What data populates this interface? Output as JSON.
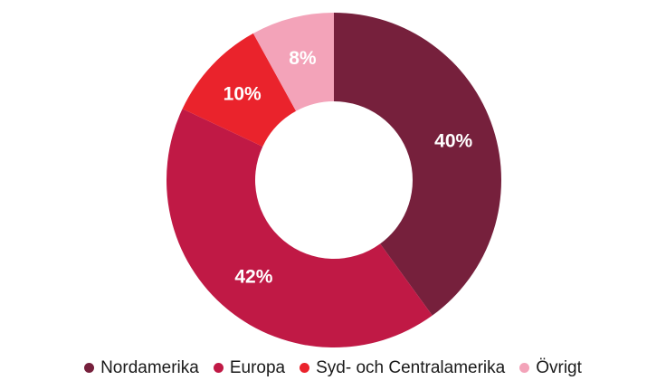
{
  "page": {
    "background_color": "#ffffff"
  },
  "chart_data": {
    "type": "pie",
    "subtype": "donut",
    "categories": [
      "Nordamerika",
      "Europa",
      "Syd- och Centralamerika",
      "Övrigt"
    ],
    "values": [
      40,
      42,
      10,
      8
    ],
    "labels": [
      "40%",
      "42%",
      "10%",
      "8%"
    ],
    "colors": [
      "#76203C",
      "#C01945",
      "#EA232C",
      "#F3A3B9"
    ],
    "slice_label_color": "#ffffff",
    "legend_position": "bottom",
    "legend_marker_shape": "circle",
    "legend_text_color": "#1a1a1a",
    "start_angle_deg": 0,
    "direction": "clockwise",
    "inner_radius_ratio": 0.47,
    "title": ""
  }
}
